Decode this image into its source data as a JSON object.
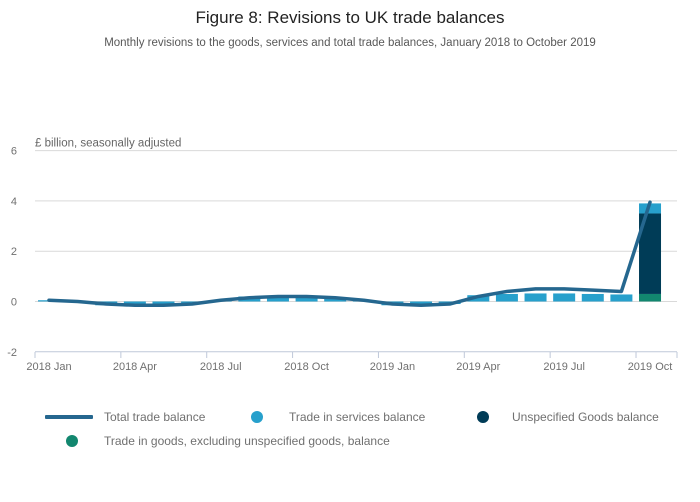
{
  "header": {
    "title": "Figure 8: Revisions to UK trade balances",
    "subtitle": "Monthly revisions to the goods, services and total trade balances, January 2018 to October 2019"
  },
  "chart_data": {
    "type": "bar",
    "subtype": "stacked-bars-with-line-overlay",
    "title": "Figure 8: Revisions to UK trade balances",
    "subtitle": "Monthly revisions to the goods, services and total trade balances, January 2018 to October 2019",
    "ylabel": "£ billion, seasonally adjusted",
    "xlabel": "",
    "ylim": [
      -2,
      6
    ],
    "yticks": [
      6,
      4,
      2,
      0,
      -2
    ],
    "xtick_labels": [
      "2018 Jan",
      "2018 Apr",
      "2018 Jul",
      "2018 Oct",
      "2019 Jan",
      "2019 Apr",
      "2019 Jul",
      "2019 Oct"
    ],
    "categories": [
      "2018 Jan",
      "2018 Feb",
      "2018 Mar",
      "2018 Apr",
      "2018 May",
      "2018 Jun",
      "2018 Jul",
      "2018 Aug",
      "2018 Sep",
      "2018 Oct",
      "2018 Nov",
      "2018 Dec",
      "2019 Jan",
      "2019 Feb",
      "2019 Mar",
      "2019 Apr",
      "2019 May",
      "2019 Jun",
      "2019 Jul",
      "2019 Aug",
      "2019 Sep",
      "2019 Oct"
    ],
    "bar_series": [
      {
        "name": "Trade in goods, excluding unspecified goods, balance",
        "color": "#12876F",
        "values": [
          0,
          0,
          0,
          0,
          0,
          0,
          0,
          0,
          0,
          0,
          0,
          0,
          0,
          0,
          0,
          0,
          0,
          0,
          0,
          0,
          0,
          0.3
        ]
      },
      {
        "name": "Unspecified Goods balance",
        "color": "#003C57",
        "values": [
          0,
          0,
          0,
          0,
          0,
          0,
          0,
          0,
          0,
          0,
          0,
          0,
          0,
          0,
          0,
          0,
          0,
          0,
          0,
          0,
          0,
          3.2
        ]
      },
      {
        "name": "Trade in services balance",
        "color": "#27A0CC",
        "values": [
          0.05,
          0,
          -0.15,
          -0.2,
          -0.15,
          -0.1,
          0.05,
          0.2,
          0.2,
          0.2,
          0.15,
          0.05,
          -0.15,
          -0.2,
          -0.1,
          0.25,
          0.3,
          0.32,
          0.32,
          0.3,
          0.28,
          0.4
        ]
      }
    ],
    "line_series": {
      "name": "Total trade balance",
      "color": "#25678F",
      "values": [
        0.05,
        0,
        -0.1,
        -0.15,
        -0.15,
        -0.1,
        0.05,
        0.15,
        0.2,
        0.2,
        0.15,
        0.05,
        -0.1,
        -0.15,
        -0.1,
        0.2,
        0.4,
        0.5,
        0.5,
        0.45,
        0.4,
        3.95
      ]
    },
    "grid": "horizontal gridlines on",
    "legend_position": "bottom"
  },
  "legend": {
    "items": [
      {
        "label": "Total trade balance",
        "shape": "line",
        "color": "#25678F"
      },
      {
        "label": "Trade in services balance",
        "shape": "circle",
        "color": "#27A0CC"
      },
      {
        "label": "Unspecified Goods balance",
        "shape": "circle",
        "color": "#003C57"
      },
      {
        "label": "Trade in goods, excluding unspecified goods, balance",
        "shape": "circle",
        "color": "#12876F"
      }
    ]
  },
  "colors": {
    "grid": "#d9d9d9",
    "axis": "#bfc8d9",
    "tick_text": "#707070"
  }
}
